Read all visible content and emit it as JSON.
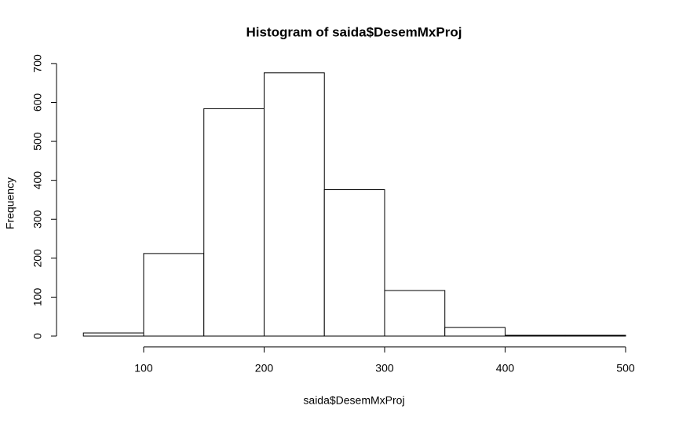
{
  "chart_data": {
    "type": "histogram",
    "title": "Histogram of saida$DesemMxProj",
    "x_label": "saida$DesemMxProj",
    "y_label": "Frequency",
    "bins": [
      50,
      100,
      150,
      200,
      250,
      300,
      350,
      400,
      450,
      500
    ],
    "counts": [
      8,
      212,
      584,
      676,
      376,
      117,
      22,
      2,
      2
    ],
    "color": "#ffffff",
    "edge_color": "#000000",
    "xlim": [
      32,
      518
    ],
    "ylim": [
      -28,
      728
    ],
    "xticks": [
      100,
      200,
      300,
      400,
      500
    ],
    "yticks": [
      0,
      100,
      200,
      300,
      400,
      500,
      600,
      700
    ],
    "grid": false
  }
}
